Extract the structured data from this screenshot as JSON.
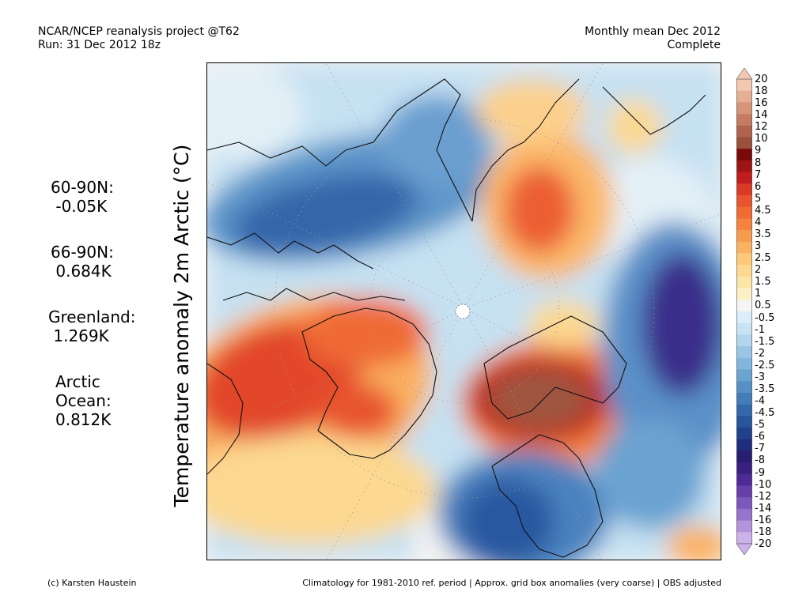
{
  "header": {
    "left_line1": "NCAR/NCEP reanalysis project @T62",
    "left_line2": "Run: 31 Dec 2012 18z",
    "right_line1": "Monthly mean Dec 2012",
    "right_line2": "Complete"
  },
  "y_label": "Temperature anomaly 2m Arctic (°C)",
  "stats": [
    {
      "label": "60-90N:",
      "value": "-0.05K"
    },
    {
      "label": "66-90N:",
      "value": "0.684K"
    },
    {
      "label": "Greenland:",
      "value": "1.269K"
    },
    {
      "label": "Arctic",
      "label2": "Ocean:",
      "value": "0.812K"
    }
  ],
  "colorbar": {
    "ticks": [
      "20",
      "18",
      "16",
      "14",
      "12",
      "10",
      "9",
      "8",
      "7",
      "6",
      "5",
      "4.5",
      "4",
      "3.5",
      "3",
      "2.5",
      "2",
      "1.5",
      "1",
      "0.5",
      "-0.5",
      "-1",
      "-1.5",
      "-2",
      "-2.5",
      "-3",
      "-3.5",
      "-4",
      "-4.5",
      "-5",
      "-6",
      "-7",
      "-8",
      "-9",
      "-10",
      "-12",
      "-14",
      "-16",
      "-18",
      "-20"
    ],
    "colors": [
      "#f2c9b0",
      "#e6ae92",
      "#d69478",
      "#c57b61",
      "#b0644d",
      "#9a503c",
      "#7a0a0a",
      "#9e1414",
      "#c01e1e",
      "#d93a26",
      "#e8542e",
      "#f06a34",
      "#f5823e",
      "#f89a4e",
      "#fab262",
      "#fcc879",
      "#fdd890",
      "#fce5a8",
      "#fcf0c6",
      "#f5f5f5",
      "#ddeef8",
      "#c8e3f3",
      "#b1d6ed",
      "#99c6e5",
      "#82b6dc",
      "#6ba3d1",
      "#5690c5",
      "#437cb8",
      "#3468ab",
      "#28559c",
      "#20418c",
      "#1e2e7c",
      "#281d70",
      "#3a1f82",
      "#4d2a95",
      "#6540a8",
      "#7d58bb",
      "#9673cc",
      "#b293dc",
      "#cbb2ea"
    ]
  },
  "footer": {
    "credit": "(c) Karsten Haustein",
    "note": "Climatology for 1981-2010 ref. period | Approx. grid box anomalies (very coarse) | OBS adjusted"
  }
}
